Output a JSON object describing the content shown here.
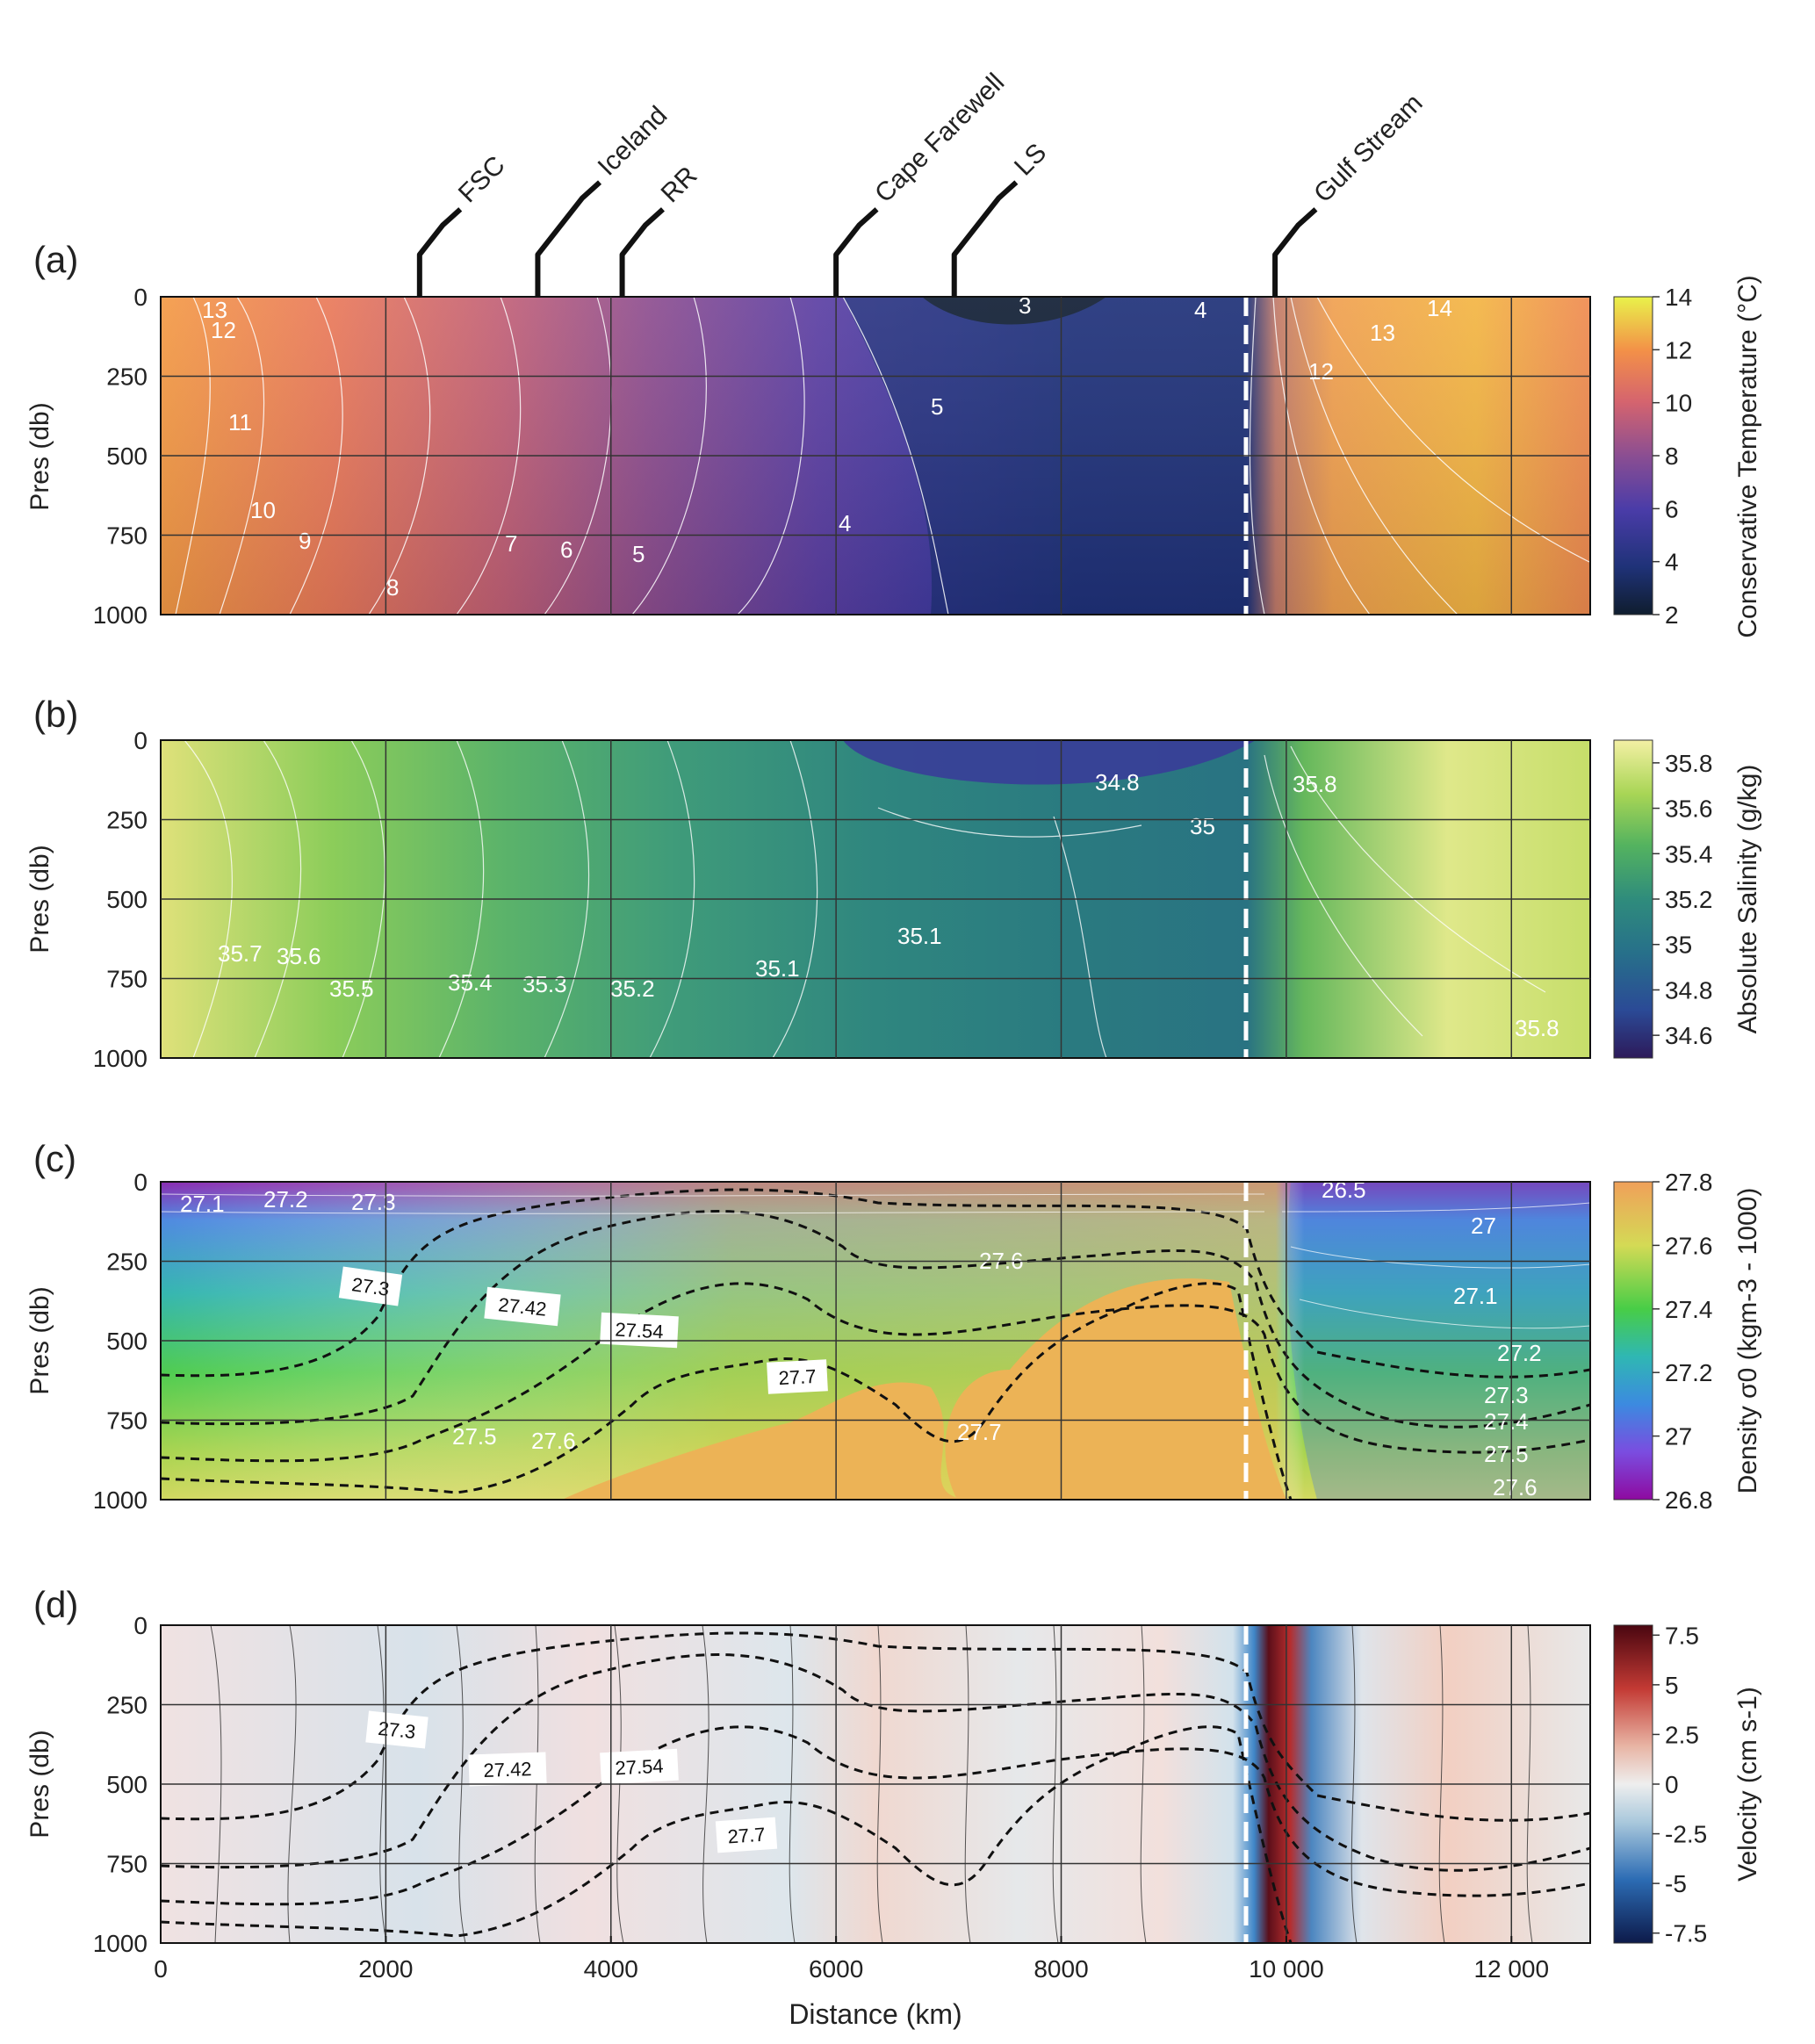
{
  "station_markers": [
    {
      "label": "FSC",
      "x": 2300
    },
    {
      "label": "Iceland",
      "x": 3350
    },
    {
      "label": "RR",
      "x": 4100
    },
    {
      "label": "Cape Farewell",
      "x": 6000
    },
    {
      "label": "LS",
      "x": 7050
    },
    {
      "label": "Gulf Stream",
      "x": 9900
    }
  ],
  "chart_data": [
    {
      "panel": "(a)",
      "type": "heatmap",
      "ylabel": "Pres (db)",
      "ylim": [
        1000,
        0
      ],
      "yticks": [
        "0",
        "250",
        "500",
        "750",
        "1000"
      ],
      "xlim": [
        0,
        12700
      ],
      "colorbar_label": "Conservative Temperature (°C)",
      "colorbar_ticks": [
        "14",
        "12",
        "10",
        "8",
        "6",
        "4",
        "2"
      ],
      "colorbar_range": [
        2,
        14
      ],
      "contour_labels": [
        "13",
        "12",
        "11",
        "10",
        "9",
        "8",
        "7",
        "6",
        "5",
        "4",
        "3",
        "5",
        "4",
        "14",
        "13",
        "12"
      ]
    },
    {
      "panel": "(b)",
      "type": "heatmap",
      "ylabel": "Pres (db)",
      "ylim": [
        1000,
        0
      ],
      "yticks": [
        "0",
        "250",
        "500",
        "750",
        "1000"
      ],
      "xlim": [
        0,
        12700
      ],
      "colorbar_label": "Absolute Salinity (g/kg)",
      "colorbar_ticks": [
        "35.8",
        "35.6",
        "35.4",
        "35.2",
        "35",
        "34.8",
        "34.6"
      ],
      "colorbar_range": [
        34.5,
        35.9
      ],
      "contour_labels": [
        "35.7",
        "35.6",
        "35.5",
        "35.4",
        "35.3",
        "35.2",
        "35.1",
        "35.1",
        "35",
        "34.8",
        "35.8",
        "35.8"
      ]
    },
    {
      "panel": "(c)",
      "type": "heatmap",
      "ylabel": "Pres (db)",
      "ylim": [
        1000,
        0
      ],
      "yticks": [
        "0",
        "250",
        "500",
        "750",
        "1000"
      ],
      "xlim": [
        0,
        12700
      ],
      "colorbar_label": "Density σ0 (kgm-3 - 1000)",
      "colorbar_ticks": [
        "27.8",
        "27.6",
        "27.4",
        "27.2",
        "27",
        "26.8"
      ],
      "colorbar_range": [
        26.8,
        27.8
      ],
      "contour_labels": [
        "27.1",
        "27.2",
        "27.3",
        "27.5",
        "27.6",
        "27.6",
        "27.7",
        "26.5",
        "27",
        "27.1",
        "27.2",
        "27.3",
        "27.4",
        "27.5",
        "27.6"
      ],
      "isopycnal_labels": [
        "27.3",
        "27.42",
        "27.54",
        "27.7"
      ]
    },
    {
      "panel": "(d)",
      "type": "heatmap",
      "ylabel": "Pres (db)",
      "ylim": [
        1000,
        0
      ],
      "yticks": [
        "0",
        "250",
        "500",
        "750",
        "1000"
      ],
      "xlim": [
        0,
        12700
      ],
      "xlabel": "Distance (km)",
      "xticks": [
        "0",
        "2000",
        "4000",
        "6000",
        "8000",
        "10 000",
        "12 000"
      ],
      "colorbar_label": "Velocity (cm s-1)",
      "colorbar_ticks": [
        "7.5",
        "5",
        "2.5",
        "0",
        "-2.5",
        "-5",
        "-7.5"
      ],
      "colorbar_range": [
        -8,
        8
      ],
      "isopycnal_labels": [
        "27.3",
        "27.42",
        "27.54",
        "27.7"
      ]
    }
  ]
}
